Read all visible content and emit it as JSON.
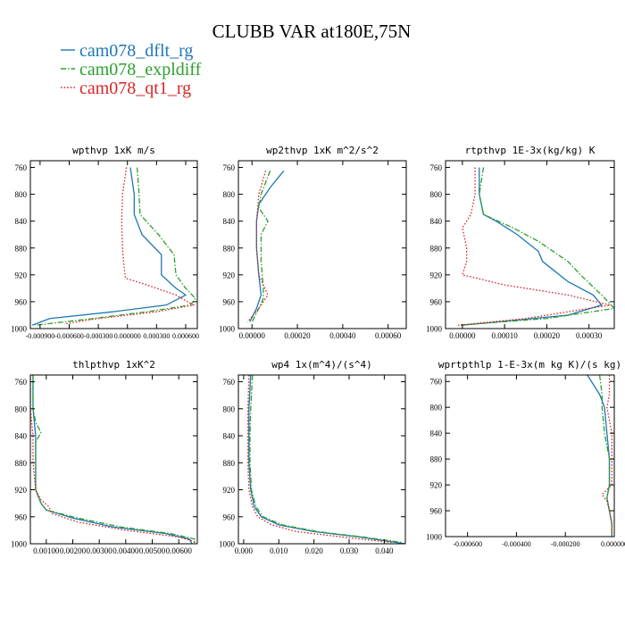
{
  "figure": {
    "title": "CLUBB VAR at180E,75N"
  },
  "legend": [
    {
      "name": "cam078_dflt_rg",
      "color": "#1f77b4",
      "dash": "solid"
    },
    {
      "name": "cam078_expldiff",
      "color": "#2ca02c",
      "dash": "dashdot"
    },
    {
      "name": "cam078_qt1_rg",
      "color": "#d62728",
      "dash": "dotted"
    }
  ],
  "chart_data": [
    {
      "type": "line",
      "title": "wpthvp  1xK m/s",
      "xlim": [
        -0.001,
        0.00072
      ],
      "ylim": [
        1000,
        750
      ],
      "xticks": [
        -0.0009,
        -0.0006,
        -0.0003,
        0.0,
        0.0003,
        0.0006
      ],
      "xtick_labels": [
        "-0.000900",
        "-0.000600",
        "-0.000300",
        "0.000000",
        "0.000300",
        "0.000600"
      ],
      "yticks": [
        760,
        800,
        840,
        880,
        920,
        960,
        1000
      ],
      "series": [
        {
          "values": [
            [
              3e-05,
              760
            ],
            [
              7e-05,
              800
            ],
            [
              7e-05,
              830
            ],
            [
              0.00015,
              860
            ],
            [
              0.00035,
              890
            ],
            [
              0.00035,
              920
            ],
            [
              0.0005,
              940
            ],
            [
              0.0006,
              950
            ],
            [
              0.0004,
              965
            ],
            [
              -0.00015,
              975
            ],
            [
              -0.0008,
              985
            ],
            [
              -0.00098,
              995
            ]
          ]
        },
        {
          "values": [
            [
              0.0001,
              760
            ],
            [
              0.00012,
              800
            ],
            [
              0.00013,
              830
            ],
            [
              0.00032,
              860
            ],
            [
              0.00048,
              890
            ],
            [
              0.0005,
              920
            ],
            [
              0.0006,
              940
            ],
            [
              0.0007,
              955
            ],
            [
              0.00065,
              965
            ],
            [
              0.0002,
              975
            ],
            [
              -0.00035,
              985
            ],
            [
              -0.00095,
              995
            ]
          ]
        },
        {
          "values": [
            [
              -1e-05,
              760
            ],
            [
              -5e-05,
              800
            ],
            [
              -6e-05,
              840
            ],
            [
              -5e-05,
              880
            ],
            [
              -4e-05,
              900
            ],
            [
              -2e-05,
              925
            ],
            [
              0.0002,
              935
            ],
            [
              0.0005,
              950
            ],
            [
              0.00068,
              965
            ],
            [
              0.0003,
              975
            ],
            [
              -0.0003,
              985
            ],
            [
              -0.00065,
              993
            ]
          ]
        }
      ]
    },
    {
      "type": "line",
      "title": "wp2thvp  1xK m^2/s^2",
      "xlim": [
        -6e-05,
        0.00068
      ],
      "ylim": [
        1000,
        750
      ],
      "xticks": [
        0.0,
        0.0002,
        0.0004,
        0.0006
      ],
      "xtick_labels": [
        "0.00000",
        "0.00020",
        "0.00040",
        "0.00060"
      ],
      "yticks": [
        760,
        800,
        840,
        880,
        920,
        960,
        1000
      ],
      "series": [
        {
          "values": [
            [
              0.00014,
              765
            ],
            [
              8e-05,
              790
            ],
            [
              3e-05,
              815
            ],
            [
              2e-05,
              840
            ],
            [
              2e-05,
              880
            ],
            [
              3e-05,
              920
            ],
            [
              4e-05,
              950
            ],
            [
              2e-05,
              970
            ],
            [
              -1e-05,
              990
            ]
          ]
        },
        {
          "values": [
            [
              8e-05,
              765
            ],
            [
              4e-05,
              800
            ],
            [
              3e-05,
              820
            ],
            [
              7e-05,
              840
            ],
            [
              4e-05,
              860
            ],
            [
              4e-05,
              900
            ],
            [
              5e-05,
              940
            ],
            [
              5e-05,
              955
            ],
            [
              3e-05,
              970
            ],
            [
              0.0,
              990
            ]
          ]
        },
        {
          "values": [
            [
              6e-05,
              765
            ],
            [
              3e-05,
              800
            ],
            [
              2e-05,
              840
            ],
            [
              2e-05,
              880
            ],
            [
              3e-05,
              920
            ],
            [
              7e-05,
              950
            ],
            [
              3e-05,
              970
            ],
            [
              -2e-05,
              990
            ]
          ]
        }
      ]
    },
    {
      "type": "line",
      "title": "rtpthvp  1E-3x(kg/kg) K",
      "xlim": [
        -4e-05,
        0.00036
      ],
      "ylim": [
        1000,
        750
      ],
      "xticks": [
        0.0,
        0.0001,
        0.0002,
        0.0003
      ],
      "xtick_labels": [
        "0.00000",
        "0.00010",
        "0.00020",
        "0.00030"
      ],
      "yticks": [
        760,
        800,
        840,
        880,
        920,
        960,
        1000
      ],
      "series": [
        {
          "values": [
            [
              4e-05,
              760
            ],
            [
              4e-05,
              800
            ],
            [
              5e-05,
              830
            ],
            [
              8e-05,
              840
            ],
            [
              0.00013,
              860
            ],
            [
              0.00018,
              885
            ],
            [
              0.00019,
              900
            ],
            [
              0.00021,
              910
            ],
            [
              0.00025,
              930
            ],
            [
              0.00031,
              950
            ],
            [
              0.00033,
              965
            ],
            [
              0.00025,
              980
            ],
            [
              0.0,
              995
            ]
          ]
        },
        {
          "values": [
            [
              5e-05,
              760
            ],
            [
              4e-05,
              800
            ],
            [
              5e-05,
              830
            ],
            [
              0.00012,
              850
            ],
            [
              0.00018,
              870
            ],
            [
              0.00025,
              900
            ],
            [
              0.00028,
              920
            ],
            [
              0.00033,
              950
            ],
            [
              0.00036,
              970
            ],
            [
              0.0002,
              985
            ],
            [
              -1e-05,
              995
            ]
          ]
        },
        {
          "values": [
            [
              3e-05,
              760
            ],
            [
              3e-05,
              800
            ],
            [
              2e-05,
              830
            ],
            [
              0.0,
              850
            ],
            [
              1e-05,
              880
            ],
            [
              1e-05,
              900
            ],
            [
              0.0,
              920
            ],
            [
              0.0001,
              935
            ],
            [
              0.00025,
              950
            ],
            [
              0.00035,
              965
            ],
            [
              0.00015,
              985
            ],
            [
              -1e-05,
              995
            ]
          ]
        }
      ]
    },
    {
      "type": "line",
      "title": "thlpthvp  1xK^2",
      "xlim": [
        0.0004,
        0.0067
      ],
      "ylim": [
        1000,
        750
      ],
      "xticks": [
        0.001,
        0.002,
        0.003,
        0.004,
        0.005,
        0.006
      ],
      "xtick_labels": [
        "0.00100",
        "0.00200",
        "0.00300",
        "0.00400",
        "0.00500",
        "0.00600"
      ],
      "yticks": [
        760,
        800,
        840,
        880,
        920,
        960,
        1000
      ],
      "series": [
        {
          "values": [
            [
              0.0005,
              750
            ],
            [
              0.0005,
              800
            ],
            [
              0.0006,
              840
            ],
            [
              0.0006,
              880
            ],
            [
              0.0006,
              920
            ],
            [
              0.0008,
              940
            ],
            [
              0.001,
              950
            ],
            [
              0.002,
              962
            ],
            [
              0.0035,
              975
            ],
            [
              0.0055,
              985
            ],
            [
              0.0064,
              993
            ],
            [
              0.0065,
              1000
            ]
          ]
        },
        {
          "values": [
            [
              0.0005,
              750
            ],
            [
              0.0005,
              800
            ],
            [
              0.0006,
              820
            ],
            [
              0.0008,
              835
            ],
            [
              0.0006,
              850
            ],
            [
              0.0006,
              880
            ],
            [
              0.0006,
              920
            ],
            [
              0.0008,
              940
            ],
            [
              0.001,
              950
            ],
            [
              0.0022,
              962
            ],
            [
              0.0038,
              975
            ],
            [
              0.0057,
              985
            ],
            [
              0.0066,
              993
            ],
            [
              0.0066,
              1000
            ]
          ]
        },
        {
          "values": [
            [
              0.0004,
              750
            ],
            [
              0.0004,
              800
            ],
            [
              0.0005,
              840
            ],
            [
              0.0005,
              880
            ],
            [
              0.0006,
              920
            ],
            [
              0.0008,
              935
            ],
            [
              0.0011,
              945
            ],
            [
              0.0012,
              955
            ],
            [
              0.0022,
              968
            ],
            [
              0.004,
              980
            ],
            [
              0.006,
              990
            ],
            [
              0.0066,
              997
            ]
          ]
        }
      ]
    },
    {
      "type": "line",
      "title": "wp4  1x(m^4)/(s^4)",
      "xlim": [
        -0.0015,
        0.046
      ],
      "ylim": [
        1000,
        750
      ],
      "xticks": [
        0.0,
        0.01,
        0.02,
        0.03,
        0.04
      ],
      "xtick_labels": [
        "0.000",
        "0.010",
        "0.020",
        "0.030",
        "0.040"
      ],
      "yticks": [
        760,
        800,
        840,
        880,
        920,
        960,
        1000
      ],
      "series": [
        {
          "values": [
            [
              0.002,
              750
            ],
            [
              0.0015,
              800
            ],
            [
              0.0015,
              840
            ],
            [
              0.0015,
              880
            ],
            [
              0.002,
              920
            ],
            [
              0.003,
              945
            ],
            [
              0.005,
              960
            ],
            [
              0.01,
              972
            ],
            [
              0.02,
              982
            ],
            [
              0.033,
              990
            ],
            [
              0.046,
              1000
            ]
          ]
        },
        {
          "values": [
            [
              0.0025,
              750
            ],
            [
              0.002,
              800
            ],
            [
              0.0018,
              840
            ],
            [
              0.0018,
              880
            ],
            [
              0.0022,
              920
            ],
            [
              0.0035,
              945
            ],
            [
              0.0055,
              960
            ],
            [
              0.011,
              972
            ],
            [
              0.021,
              982
            ],
            [
              0.034,
              990
            ],
            [
              0.045,
              998
            ]
          ]
        },
        {
          "values": [
            [
              0.0015,
              750
            ],
            [
              0.0012,
              800
            ],
            [
              0.0012,
              840
            ],
            [
              0.0012,
              880
            ],
            [
              0.0015,
              920
            ],
            [
              0.0025,
              945
            ],
            [
              0.004,
              960
            ],
            [
              0.008,
              972
            ],
            [
              0.015,
              982
            ],
            [
              0.028,
              990
            ],
            [
              0.042,
              998
            ]
          ]
        }
      ]
    },
    {
      "type": "line",
      "title": "wprtpthlp  1-E-3x(m kg K)/(s kg)",
      "xlim": [
        -0.00069,
        0.0
      ],
      "ylim": [
        1000,
        750
      ],
      "xticks": [
        -0.0006,
        -0.0004,
        -0.0002,
        0.0
      ],
      "xtick_labels": [
        "-0.000600",
        "-0.000400",
        "-0.000200",
        "0.000000"
      ],
      "yticks": [
        760,
        800,
        840,
        880,
        920,
        960,
        1000
      ],
      "series": [
        {
          "values": [
            [
              -0.00011,
              750
            ],
            [
              -6e-05,
              780
            ],
            [
              -4e-05,
              800
            ],
            [
              -3e-05,
              840
            ],
            [
              -2e-05,
              880
            ],
            [
              -2e-05,
              920
            ],
            [
              -3e-05,
              940
            ],
            [
              -2e-05,
              960
            ],
            [
              -1e-05,
              980
            ],
            [
              -1e-05,
              1000
            ]
          ]
        },
        {
          "values": [
            [
              -6e-05,
              750
            ],
            [
              -5e-05,
              780
            ],
            [
              -5e-05,
              800
            ],
            [
              -4e-05,
              840
            ],
            [
              -2e-05,
              880
            ],
            [
              -2e-05,
              920
            ],
            [
              -3e-05,
              940
            ],
            [
              -2e-05,
              960
            ],
            [
              -1e-05,
              980
            ],
            [
              -1e-05,
              1000
            ]
          ]
        },
        {
          "values": [
            [
              -2e-05,
              750
            ],
            [
              -2e-05,
              780
            ],
            [
              -3e-05,
              800
            ],
            [
              -1e-05,
              840
            ],
            [
              -1e-05,
              880
            ],
            [
              -1e-05,
              920
            ],
            [
              -5e-05,
              935
            ],
            [
              -3e-05,
              945
            ],
            [
              -2e-05,
              960
            ],
            [
              -1e-05,
              980
            ],
            [
              -1e-05,
              995
            ]
          ]
        }
      ]
    }
  ]
}
